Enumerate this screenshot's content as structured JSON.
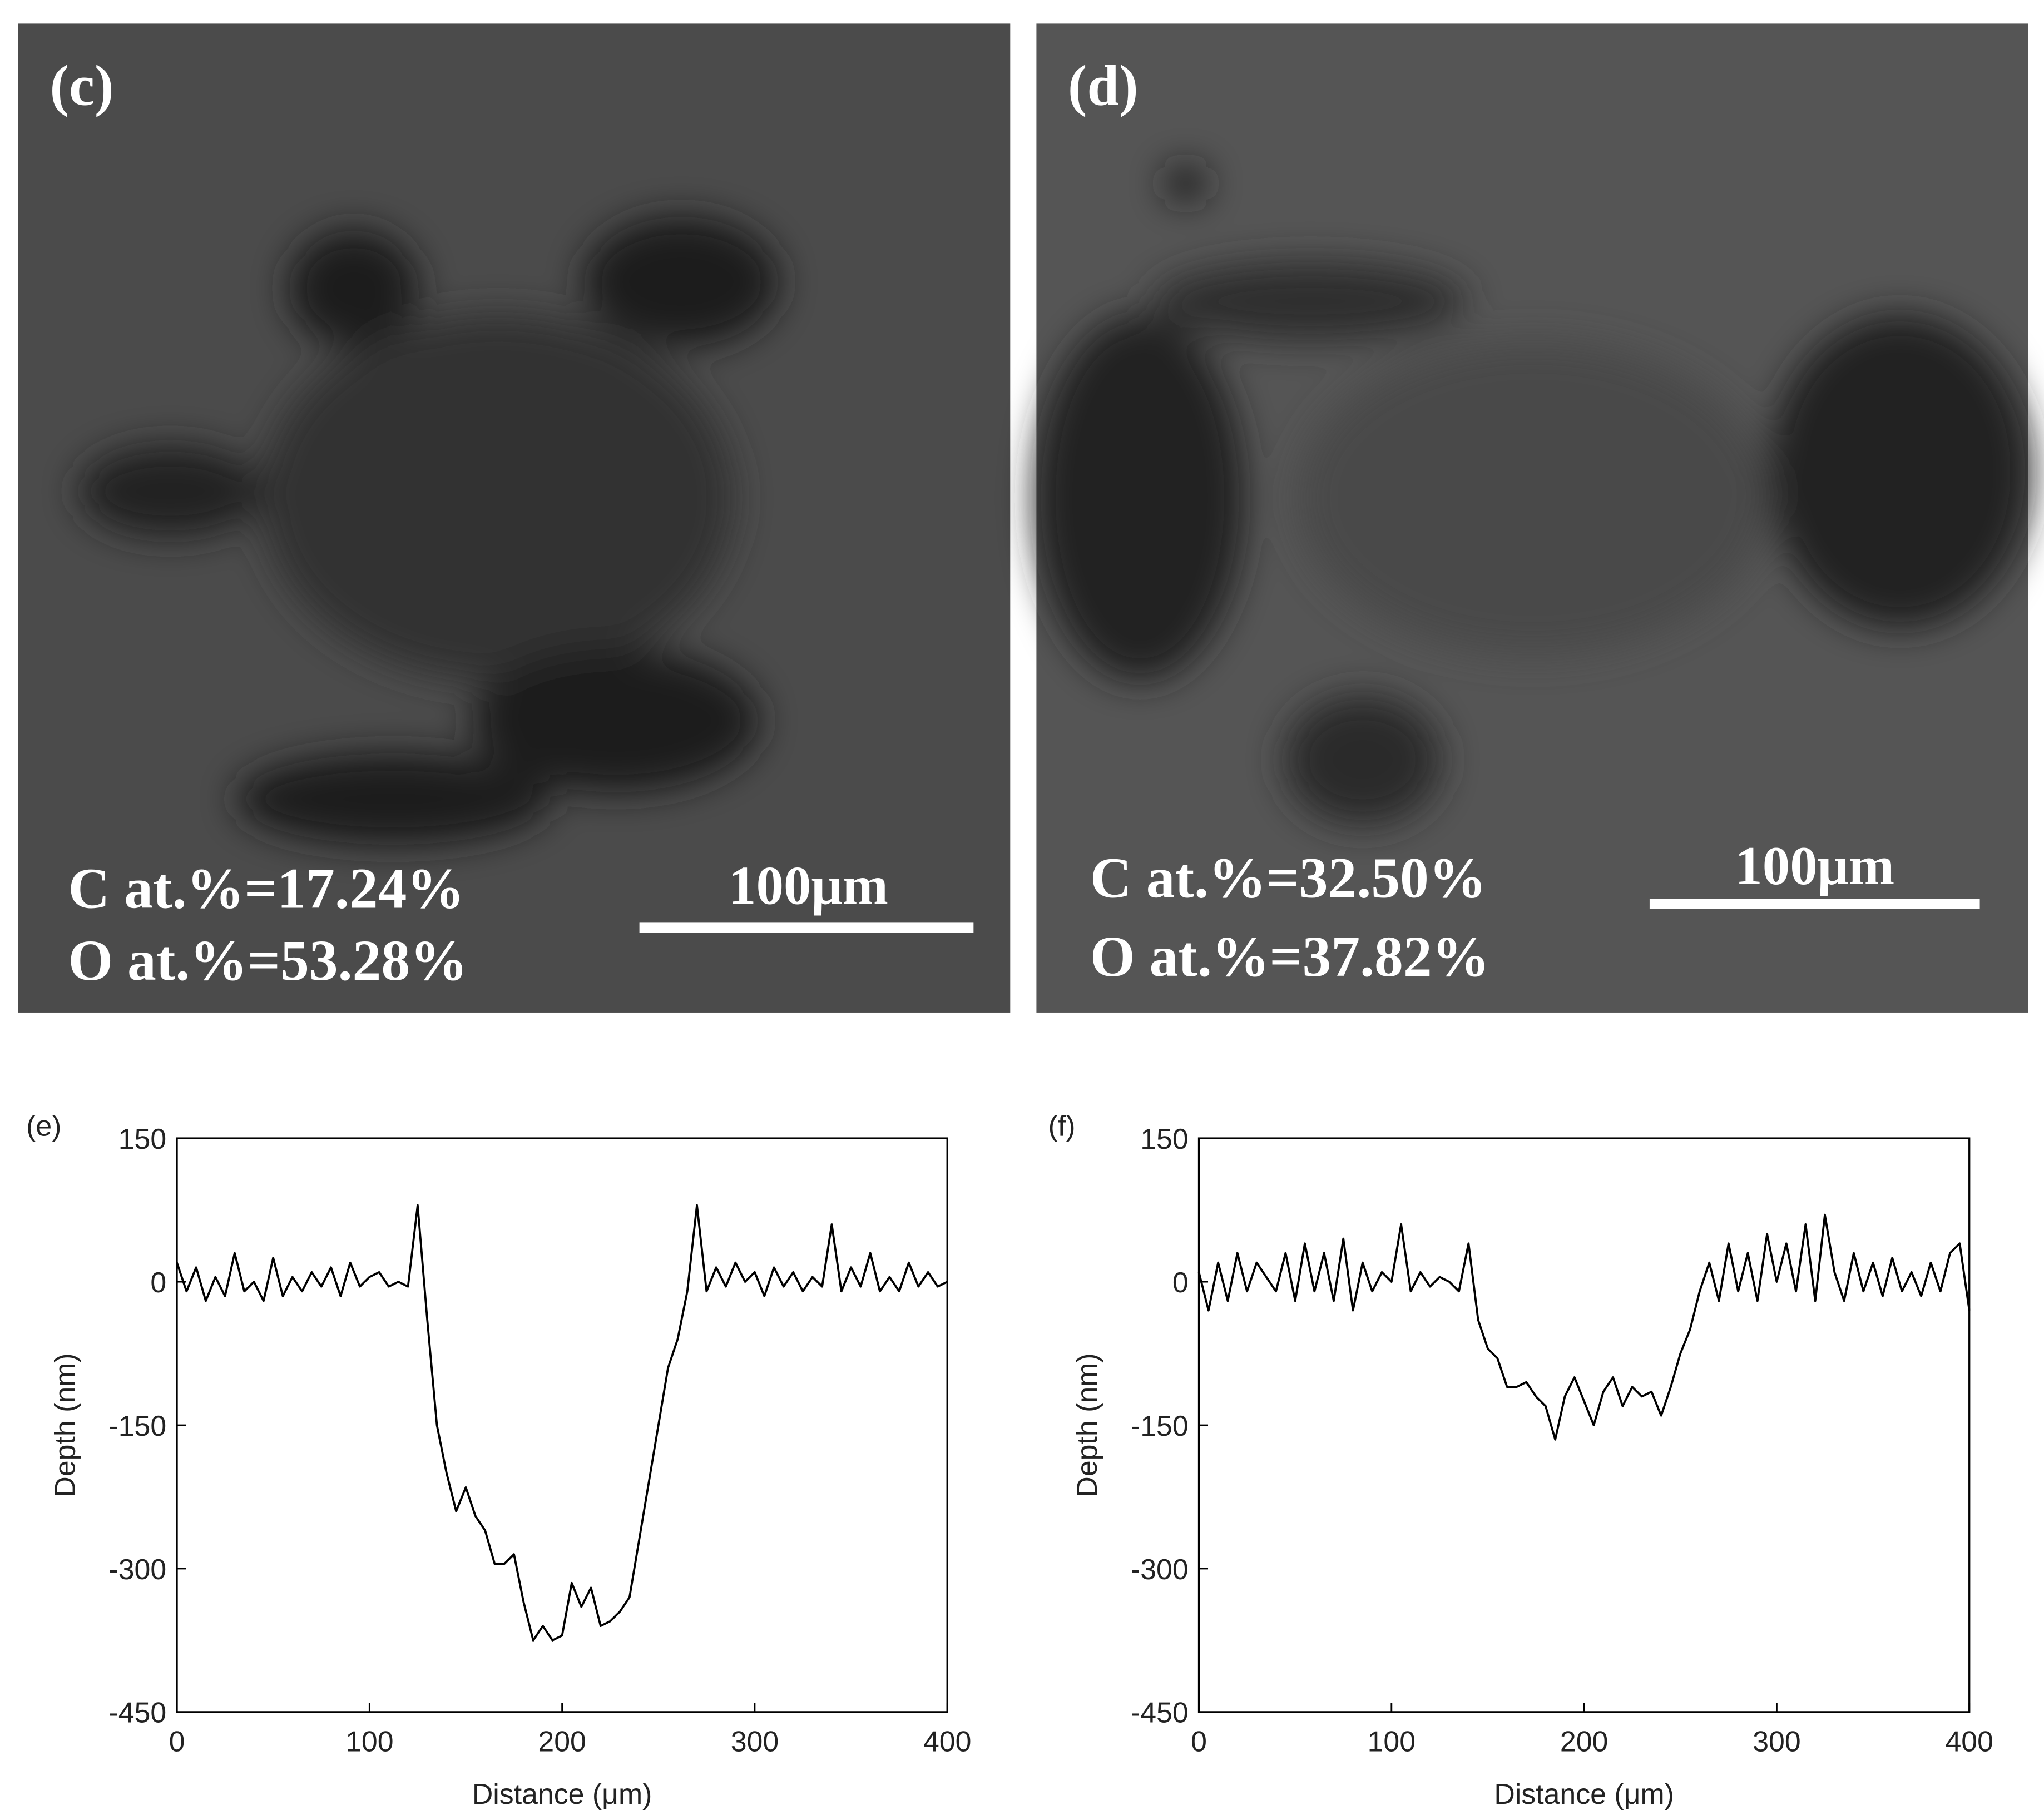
{
  "images": [
    {
      "label": "(c)",
      "composition": [
        "C at.%=17.24%",
        "O at.%=53.28%"
      ],
      "scale_bar": "100μm"
    },
    {
      "label": "(d)",
      "composition": [
        "C at.%=32.50%",
        "O at.%=37.82%"
      ],
      "scale_bar": "100μm"
    }
  ],
  "chart_data": [
    {
      "type": "line",
      "title": "(e)",
      "x_label": "Distance (μm)",
      "y_label": "Depth (nm)",
      "color": "#000000",
      "xlim": [
        0,
        400
      ],
      "xticks": [
        0,
        100,
        200,
        300,
        400
      ],
      "ylim": [
        -450,
        150
      ],
      "yticks": [
        -450,
        -300,
        -150,
        0,
        150
      ],
      "x": [
        0,
        5,
        10,
        15,
        20,
        25,
        30,
        35,
        40,
        45,
        50,
        55,
        60,
        65,
        70,
        75,
        80,
        85,
        90,
        95,
        100,
        105,
        110,
        115,
        120,
        125,
        130,
        135,
        140,
        145,
        150,
        155,
        160,
        165,
        170,
        175,
        180,
        185,
        190,
        195,
        200,
        205,
        210,
        215,
        220,
        225,
        230,
        235,
        240,
        245,
        250,
        255,
        260,
        265,
        270,
        275,
        280,
        285,
        290,
        295,
        300,
        305,
        310,
        315,
        320,
        325,
        330,
        335,
        340,
        345,
        350,
        355,
        360,
        365,
        370,
        375,
        380,
        385,
        390,
        395,
        400
      ],
      "values": [
        20,
        -10,
        15,
        -20,
        5,
        -15,
        30,
        -10,
        0,
        -20,
        25,
        -15,
        5,
        -10,
        10,
        -5,
        15,
        -15,
        20,
        -5,
        5,
        10,
        -5,
        0,
        -5,
        80,
        -40,
        -150,
        -200,
        -240,
        -215,
        -245,
        -260,
        -295,
        -295,
        -285,
        -335,
        -375,
        -360,
        -375,
        -370,
        -315,
        -340,
        -320,
        -360,
        -355,
        -345,
        -330,
        -270,
        -210,
        -150,
        -90,
        -60,
        -10,
        80,
        -10,
        15,
        -5,
        20,
        0,
        10,
        -15,
        15,
        -5,
        10,
        -10,
        5,
        -5,
        60,
        -10,
        15,
        -5,
        30,
        -10,
        5,
        -10,
        20,
        -5,
        10,
        -5,
        0
      ]
    },
    {
      "type": "line",
      "title": "(f)",
      "x_label": "Distance (μm)",
      "y_label": "Depth (nm)",
      "color": "#000000",
      "xlim": [
        0,
        400
      ],
      "xticks": [
        0,
        100,
        200,
        300,
        400
      ],
      "ylim": [
        -450,
        150
      ],
      "yticks": [
        -450,
        -300,
        -150,
        0,
        150
      ],
      "x": [
        0,
        5,
        10,
        15,
        20,
        25,
        30,
        35,
        40,
        45,
        50,
        55,
        60,
        65,
        70,
        75,
        80,
        85,
        90,
        95,
        100,
        105,
        110,
        115,
        120,
        125,
        130,
        135,
        140,
        145,
        150,
        155,
        160,
        165,
        170,
        175,
        180,
        185,
        190,
        195,
        200,
        205,
        210,
        215,
        220,
        225,
        230,
        235,
        240,
        245,
        250,
        255,
        260,
        265,
        270,
        275,
        280,
        285,
        290,
        295,
        300,
        305,
        310,
        315,
        320,
        325,
        330,
        335,
        340,
        345,
        350,
        355,
        360,
        365,
        370,
        375,
        380,
        385,
        390,
        395,
        400
      ],
      "values": [
        10,
        -30,
        20,
        -20,
        30,
        -10,
        20,
        5,
        -10,
        30,
        -20,
        40,
        -10,
        30,
        -20,
        45,
        -30,
        20,
        -10,
        10,
        0,
        60,
        -10,
        10,
        -5,
        5,
        0,
        -10,
        40,
        -40,
        -70,
        -80,
        -110,
        -110,
        -105,
        -120,
        -130,
        -165,
        -120,
        -100,
        -125,
        -150,
        -115,
        -100,
        -130,
        -110,
        -120,
        -115,
        -140,
        -110,
        -75,
        -50,
        -10,
        20,
        -20,
        40,
        -10,
        30,
        -20,
        50,
        0,
        40,
        -10,
        60,
        -20,
        70,
        10,
        -20,
        30,
        -10,
        20,
        -15,
        25,
        -10,
        10,
        -15,
        20,
        -10,
        30,
        40,
        -30
      ]
    }
  ]
}
